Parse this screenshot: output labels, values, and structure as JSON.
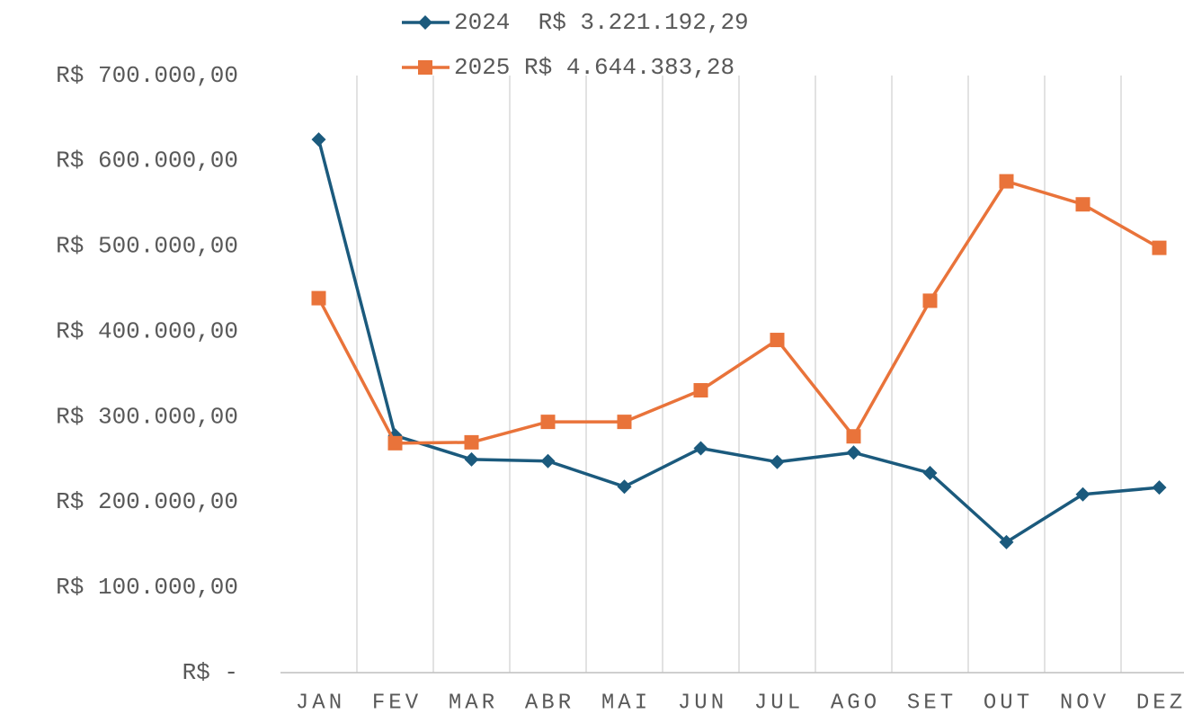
{
  "chart_data": {
    "type": "line",
    "categories": [
      "JAN",
      "FEV",
      "MAR",
      "ABR",
      "MAI",
      "JUN",
      "JUL",
      "AGO",
      "SET",
      "OUT",
      "NOV",
      "DEZ"
    ],
    "series": [
      {
        "name": "2024  R$ 3.221.192,29",
        "color": "#1b5a7d",
        "marker": "diamond",
        "values": [
          625000,
          278000,
          250000,
          248000,
          218000,
          263000,
          247000,
          258000,
          234000,
          153000,
          209000,
          217000
        ]
      },
      {
        "name": "2025 R$ 4.644.383,28",
        "color": "#e9733a",
        "marker": "square",
        "values": [
          439000,
          269000,
          270000,
          294000,
          294000,
          331000,
          390000,
          277000,
          436000,
          576000,
          549000,
          498000
        ]
      }
    ],
    "ylim": [
      0,
      700000
    ],
    "yticks": [
      {
        "value": 0,
        "label": "R$ -"
      },
      {
        "value": 100000,
        "label": "R$ 100.000,00"
      },
      {
        "value": 200000,
        "label": "R$ 200.000,00"
      },
      {
        "value": 300000,
        "label": "R$ 300.000,00"
      },
      {
        "value": 400000,
        "label": "R$ 400.000,00"
      },
      {
        "value": 500000,
        "label": "R$ 500.000,00"
      },
      {
        "value": 600000,
        "label": "R$ 600.000,00"
      },
      {
        "value": 700000,
        "label": "R$ 700.000,00"
      }
    ],
    "grid": "vertical"
  }
}
